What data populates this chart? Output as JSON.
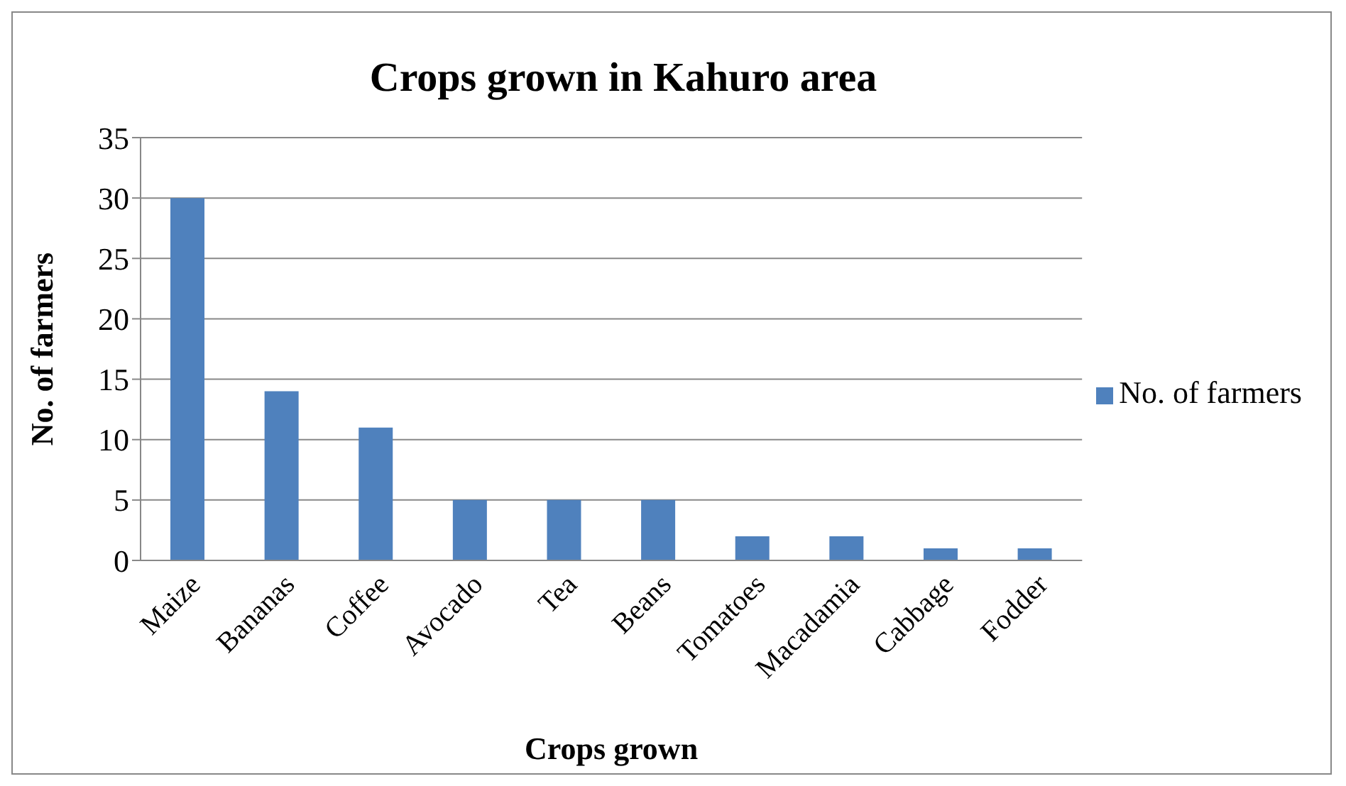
{
  "chart_data": {
    "type": "bar",
    "title": "Crops grown in Kahuro area",
    "xlabel": "Crops grown",
    "ylabel": "No. of farmers",
    "categories": [
      "Maize",
      "Bananas",
      "Coffee",
      "Avocado",
      "Tea",
      "Beans",
      "Tomatoes",
      "Macadamia",
      "Cabbage",
      "Fodder"
    ],
    "series": [
      {
        "name": "No. of farmers",
        "color": "#4f81bd",
        "values": [
          30,
          14,
          11,
          5,
          5,
          5,
          2,
          2,
          1,
          1
        ]
      }
    ],
    "ylim": [
      0,
      35
    ],
    "yticks": [
      0,
      5,
      10,
      15,
      20,
      25,
      30,
      35
    ],
    "grid": "y",
    "legend": "right"
  }
}
